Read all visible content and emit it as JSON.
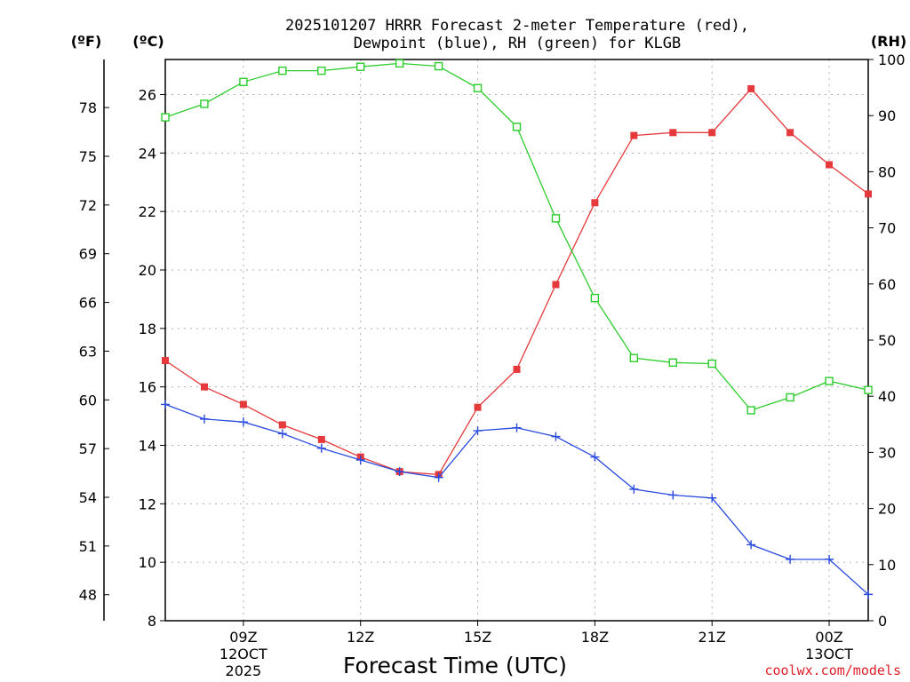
{
  "title_line1": "2025101207 HRRR Forecast 2-meter Temperature (red),",
  "title_line2": "Dewpoint (blue), RH (green) for KLGB",
  "colors": {
    "temperature": "#e5393b",
    "dewpoint": "#2b4bde",
    "rh": "#2ccd2c"
  },
  "chart_data": {
    "type": "line",
    "title": "2025101207 HRRR Forecast 2-meter Temperature (red), Dewpoint (blue), RH (green) for KLGB",
    "xlabel": "Forecast Time (UTC)",
    "x_unit": "forecast hour from 12OCT 2025 07Z",
    "x_range": [
      0,
      18
    ],
    "x": [
      0,
      1,
      2,
      3,
      4,
      5,
      6,
      7,
      8,
      9,
      10,
      11,
      12,
      13,
      14,
      15,
      16,
      17,
      18
    ],
    "x_ticks": [
      {
        "x": 2,
        "lines": [
          "09Z",
          "12OCT",
          "2025"
        ]
      },
      {
        "x": 5,
        "lines": [
          "12Z"
        ]
      },
      {
        "x": 8,
        "lines": [
          "15Z"
        ]
      },
      {
        "x": 11,
        "lines": [
          "18Z"
        ]
      },
      {
        "x": 14,
        "lines": [
          "21Z"
        ]
      },
      {
        "x": 17,
        "lines": [
          "00Z",
          "13OCT"
        ]
      }
    ],
    "left_axis_c": {
      "label": "(ºC)",
      "range": [
        8,
        27.2
      ],
      "ticks": [
        8,
        10,
        12,
        14,
        16,
        18,
        20,
        22,
        24,
        26
      ]
    },
    "left_axis_f": {
      "label": "(ºF)",
      "ticks": [
        48,
        51,
        54,
        57,
        60,
        63,
        66,
        69,
        72,
        75,
        78
      ]
    },
    "right_axis_rh": {
      "label": "(RH)",
      "range": [
        0,
        100
      ],
      "ticks": [
        0,
        10,
        20,
        30,
        40,
        50,
        60,
        70,
        80,
        90,
        100
      ]
    },
    "grid": true,
    "series": [
      {
        "name": "Temperature",
        "unit": "C",
        "marker": "filled-square",
        "values": [
          16.9,
          16.0,
          15.4,
          14.7,
          14.2,
          13.6,
          13.1,
          13.0,
          15.3,
          16.6,
          19.5,
          22.3,
          24.6,
          24.7,
          24.7,
          26.2,
          24.7,
          23.6,
          22.6
        ]
      },
      {
        "name": "Dewpoint",
        "unit": "C",
        "marker": "plus",
        "values": [
          15.4,
          14.9,
          14.8,
          14.4,
          13.9,
          13.5,
          13.1,
          12.9,
          14.5,
          14.6,
          14.3,
          13.6,
          12.5,
          12.3,
          12.2,
          10.6,
          10.1,
          10.1,
          8.9
        ]
      },
      {
        "name": "RH",
        "unit": "%",
        "marker": "open-square",
        "values": [
          89.7,
          92.1,
          96.0,
          98.0,
          98.0,
          98.7,
          99.3,
          98.8,
          94.9,
          88.0,
          71.7,
          57.5,
          46.8,
          46.0,
          45.8,
          37.5,
          39.8,
          42.7,
          41.1
        ]
      }
    ]
  },
  "footer": {
    "xlabel": "Forecast Time (UTC)",
    "credit": "coolwx.com/models"
  }
}
